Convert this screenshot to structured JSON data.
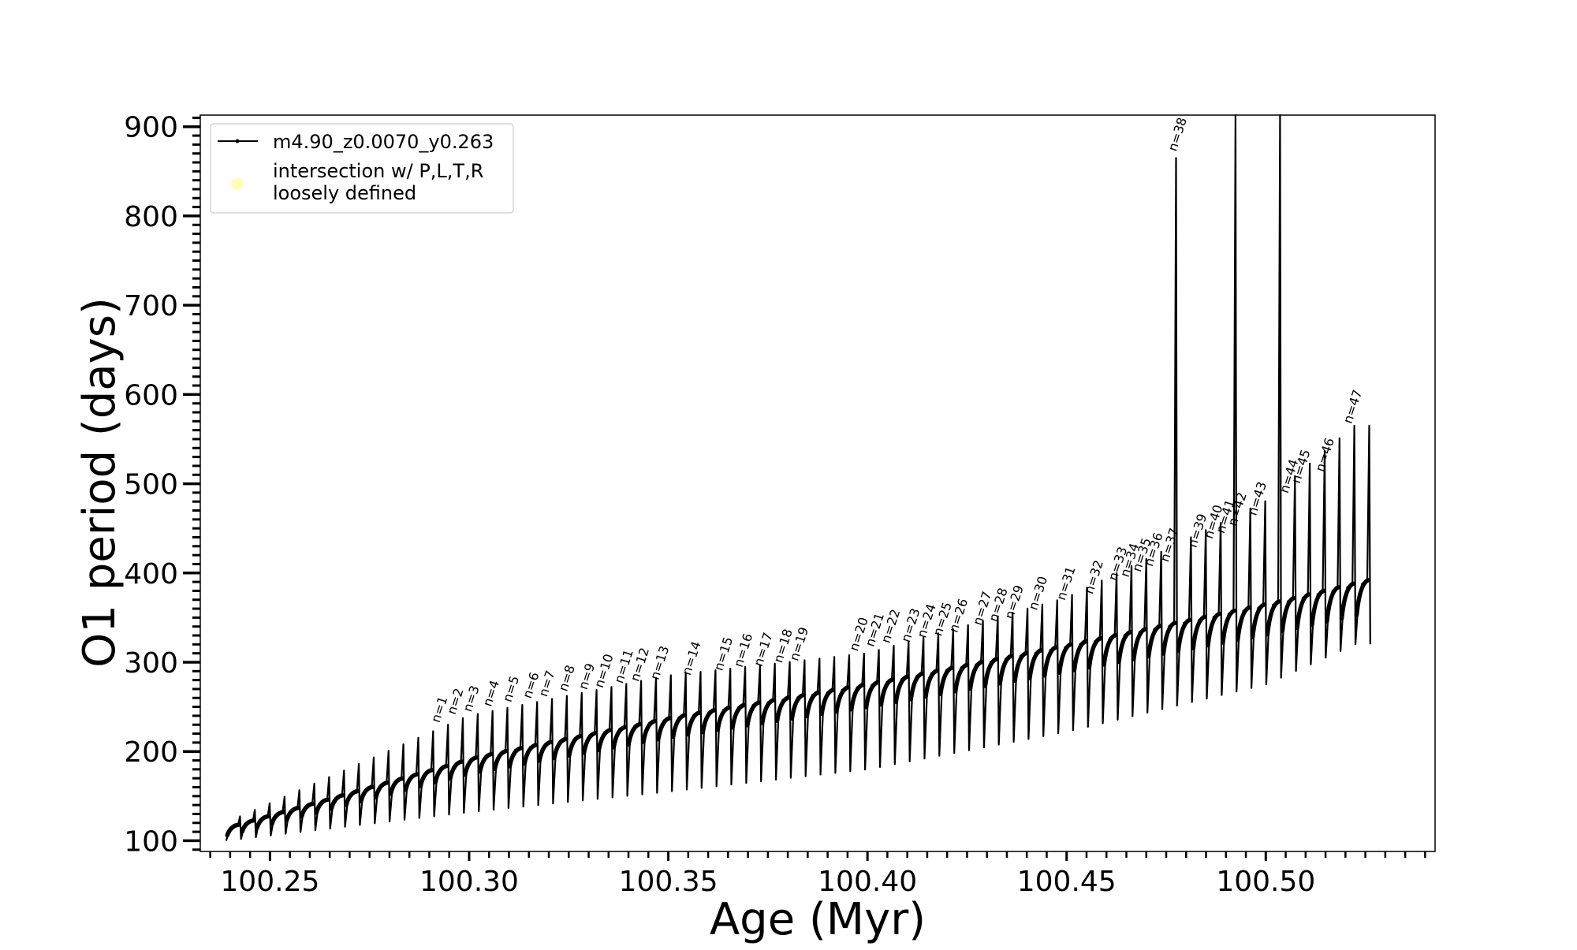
{
  "chart_data": {
    "type": "line",
    "title": "",
    "xlabel": "Age (Myr)",
    "ylabel": "O1 period (days)",
    "xlim": [
      100.2325,
      100.5425
    ],
    "ylim": [
      88,
      913
    ],
    "x_ticks": [
      100.25,
      100.3,
      100.35,
      100.4,
      100.45,
      100.5
    ],
    "x_tick_labels": [
      "100.25",
      "100.30",
      "100.35",
      "100.40",
      "100.45",
      "100.50"
    ],
    "x_minor_step": 0.005,
    "y_ticks": [
      100,
      200,
      300,
      400,
      500,
      600,
      700,
      800,
      900
    ],
    "y_tick_labels": [
      "100",
      "200",
      "300",
      "400",
      "500",
      "600",
      "700",
      "800",
      "900"
    ],
    "y_minor_step": 10,
    "grid": false,
    "legend_position": "top-left",
    "legend": [
      {
        "label": "m4.90_z0.0070_y0.263",
        "marker": "line-with-dots",
        "color": "#000000"
      },
      {
        "label_lines": [
          "intersection w/ P,L,T,R",
          "loosely defined"
        ],
        "marker": "circle",
        "color": "#ffffa8"
      }
    ],
    "series": [
      {
        "name": "m4.90_z0.0070_y0.263",
        "color": "#000000",
        "style": "line-with-dots",
        "description": "Repeated blue-loop pulses: 77 cycles from 100.239 to 100.5225 Myr; each cycle dips to a trough and rises to a spike",
        "cycles": {
          "count": 77,
          "x_start": 100.239,
          "x_end": 100.5225
        },
        "envelope": {
          "x": [
            100.239,
            100.3,
            100.35,
            100.4,
            100.45,
            100.5,
            100.5225
          ],
          "baseline": [
            118,
            195,
            240,
            278,
            322,
            368,
            392
          ],
          "trough": [
            100,
            132,
            155,
            180,
            222,
            275,
            320
          ],
          "spike": [
            120,
            240,
            285,
            310,
            372,
            480,
            565
          ]
        },
        "large_spikes": [
          {
            "x": 100.4765,
            "y": 865
          },
          {
            "x": 100.4915,
            "y": 913
          },
          {
            "x": 100.5005,
            "y": 913
          }
        ]
      }
    ],
    "annotations": [
      {
        "text": "n=1",
        "x": 100.2925,
        "y": 228
      },
      {
        "text": "n=2",
        "x": 100.2965,
        "y": 237
      },
      {
        "text": "n=3",
        "x": 100.3005,
        "y": 240
      },
      {
        "text": "n=4",
        "x": 100.3055,
        "y": 246
      },
      {
        "text": "n=5",
        "x": 100.3105,
        "y": 251
      },
      {
        "text": "n=6",
        "x": 100.3155,
        "y": 255
      },
      {
        "text": "n=7",
        "x": 100.3195,
        "y": 257
      },
      {
        "text": "n=8",
        "x": 100.3245,
        "y": 263
      },
      {
        "text": "n=9",
        "x": 100.3295,
        "y": 265
      },
      {
        "text": "n=10",
        "x": 100.3335,
        "y": 267
      },
      {
        "text": "n=11",
        "x": 100.3385,
        "y": 272
      },
      {
        "text": "n=12",
        "x": 100.3425,
        "y": 274
      },
      {
        "text": "n=13",
        "x": 100.3475,
        "y": 276
      },
      {
        "text": "n=14",
        "x": 100.3555,
        "y": 281
      },
      {
        "text": "n=15",
        "x": 100.3635,
        "y": 286
      },
      {
        "text": "n=16",
        "x": 100.3685,
        "y": 290
      },
      {
        "text": "n=17",
        "x": 100.3735,
        "y": 291
      },
      {
        "text": "n=18",
        "x": 100.3785,
        "y": 295
      },
      {
        "text": "n=19",
        "x": 100.3825,
        "y": 297
      },
      {
        "text": "n=20",
        "x": 100.3975,
        "y": 308
      },
      {
        "text": "n=21",
        "x": 100.4015,
        "y": 313
      },
      {
        "text": "n=22",
        "x": 100.4055,
        "y": 317
      },
      {
        "text": "n=23",
        "x": 100.4105,
        "y": 318
      },
      {
        "text": "n=24",
        "x": 100.4145,
        "y": 323
      },
      {
        "text": "n=25",
        "x": 100.4185,
        "y": 325
      },
      {
        "text": "n=26",
        "x": 100.4225,
        "y": 329
      },
      {
        "text": "n=27",
        "x": 100.4285,
        "y": 337
      },
      {
        "text": "n=28",
        "x": 100.4325,
        "y": 341
      },
      {
        "text": "n=29",
        "x": 100.4365,
        "y": 344
      },
      {
        "text": "n=30",
        "x": 100.4425,
        "y": 354
      },
      {
        "text": "n=31",
        "x": 100.4495,
        "y": 365
      },
      {
        "text": "n=32",
        "x": 100.4565,
        "y": 372
      },
      {
        "text": "n=33",
        "x": 100.4625,
        "y": 387
      },
      {
        "text": "n=34",
        "x": 100.4655,
        "y": 391
      },
      {
        "text": "n=35",
        "x": 100.4685,
        "y": 397
      },
      {
        "text": "n=36",
        "x": 100.4715,
        "y": 403
      },
      {
        "text": "n=37",
        "x": 100.4755,
        "y": 408
      },
      {
        "text": "n=38",
        "x": 100.4775,
        "y": 868
      },
      {
        "text": "n=39",
        "x": 100.4825,
        "y": 424
      },
      {
        "text": "n=40",
        "x": 100.4865,
        "y": 434
      },
      {
        "text": "n=41",
        "x": 100.4895,
        "y": 440
      },
      {
        "text": "n=42",
        "x": 100.4925,
        "y": 448
      },
      {
        "text": "n=43",
        "x": 100.4975,
        "y": 460
      },
      {
        "text": "n=44",
        "x": 100.5055,
        "y": 485
      },
      {
        "text": "n=45",
        "x": 100.5085,
        "y": 496
      },
      {
        "text": "n=46",
        "x": 100.5145,
        "y": 509
      },
      {
        "text": "n=47",
        "x": 100.5215,
        "y": 563
      }
    ]
  }
}
